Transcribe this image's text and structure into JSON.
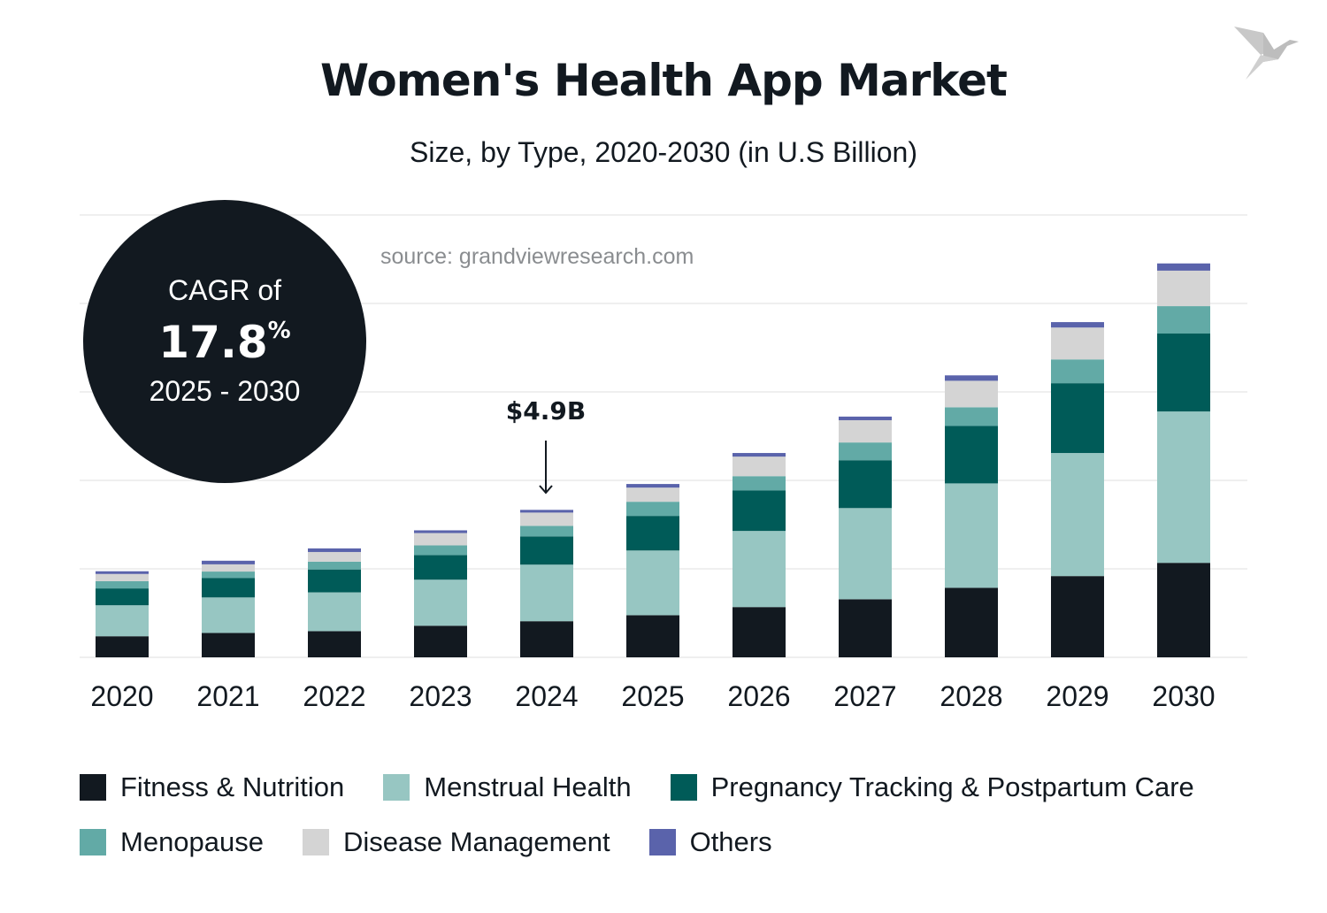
{
  "title": "Women's Health App Market",
  "subtitle": "Size, by Type, 2020-2030 (in U.S Billion)",
  "source": "source: grandviewresearch.com",
  "cagr": {
    "line1": "CAGR of",
    "value": "17.8",
    "unit": "%",
    "period": "2025 - 2030"
  },
  "logo": "bird-logo",
  "chart_data": {
    "type": "bar",
    "stacked": true,
    "title": "Women's Health App Market",
    "subtitle": "Size, by Type, 2020-2030 (in U.S Billion)",
    "xlabel": "",
    "ylabel": "",
    "ylim": [
      0,
      14.7
    ],
    "grid": true,
    "legend_position": "bottom",
    "categories": [
      "2020",
      "2021",
      "2022",
      "2023",
      "2024",
      "2025",
      "2026",
      "2027",
      "2028",
      "2029",
      "2030"
    ],
    "series": [
      {
        "name": "Fitness & Nutrition",
        "color": "#121920",
        "values": [
          0.7,
          0.81,
          0.87,
          1.05,
          1.2,
          1.4,
          1.67,
          1.93,
          2.31,
          2.7,
          3.14
        ]
      },
      {
        "name": "Menstrual Health",
        "color": "#97c6c2",
        "values": [
          1.03,
          1.18,
          1.29,
          1.53,
          1.88,
          2.15,
          2.53,
          3.03,
          3.47,
          4.09,
          5.03
        ]
      },
      {
        "name": "Pregnancy Tracking & Postpartum Care",
        "color": "#005b58",
        "values": [
          0.56,
          0.65,
          0.76,
          0.82,
          0.94,
          1.15,
          1.35,
          1.59,
          1.91,
          2.32,
          2.59
        ]
      },
      {
        "name": "Menopause",
        "color": "#62aaa6",
        "values": [
          0.24,
          0.21,
          0.26,
          0.32,
          0.35,
          0.47,
          0.47,
          0.59,
          0.62,
          0.79,
          0.91
        ]
      },
      {
        "name": "Disease Management",
        "color": "#d4d4d4",
        "values": [
          0.24,
          0.24,
          0.32,
          0.41,
          0.44,
          0.47,
          0.65,
          0.74,
          0.88,
          1.06,
          1.18
        ]
      },
      {
        "name": "Others",
        "color": "#5a63ab",
        "values": [
          0.09,
          0.12,
          0.12,
          0.09,
          0.09,
          0.12,
          0.12,
          0.12,
          0.18,
          0.18,
          0.24
        ]
      }
    ],
    "annotations": [
      {
        "category": "2024",
        "text": "$4.9B"
      }
    ]
  }
}
